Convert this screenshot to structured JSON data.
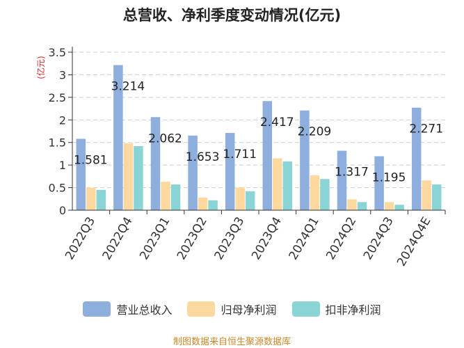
{
  "chart_data": {
    "type": "bar",
    "title": "总营收、净利季度变动情况(亿元)",
    "ylabel": "(亿元)",
    "xlabel": "",
    "ylim": [
      0,
      3.5
    ],
    "yticks": [
      0,
      0.5,
      1,
      1.5,
      2,
      2.5,
      3,
      3.5
    ],
    "ytick_labels": [
      "0",
      "0.5",
      "1",
      "1.5",
      "2",
      "2.5",
      "3",
      "3.5"
    ],
    "grid": true,
    "legend": "bottom",
    "categories": [
      "2022Q3",
      "2022Q4",
      "2023Q1",
      "2023Q2",
      "2023Q3",
      "2023Q4",
      "2024Q1",
      "2024Q2",
      "2024Q3",
      "2024Q4E"
    ],
    "series": [
      {
        "name": "营业总收入",
        "color": "#8eaedd",
        "values": [
          1.581,
          3.214,
          2.062,
          1.653,
          1.711,
          2.417,
          2.209,
          1.317,
          1.195,
          2.271
        ],
        "data_labels": [
          "1.581",
          "3.214",
          "2.062",
          "1.653",
          "1.711",
          "2.417",
          "2.209",
          "1.317",
          "1.195",
          "2.271"
        ]
      },
      {
        "name": "归母净利润",
        "color": "#fdd9a0",
        "values": [
          0.5,
          1.48,
          0.63,
          0.28,
          0.5,
          1.15,
          0.77,
          0.24,
          0.18,
          0.66
        ]
      },
      {
        "name": "扣非净利润",
        "color": "#8bd4d6",
        "values": [
          0.45,
          1.42,
          0.57,
          0.22,
          0.42,
          1.08,
          0.69,
          0.18,
          0.12,
          0.57
        ]
      }
    ]
  },
  "source": "制图数据来自恒生聚源数据库"
}
